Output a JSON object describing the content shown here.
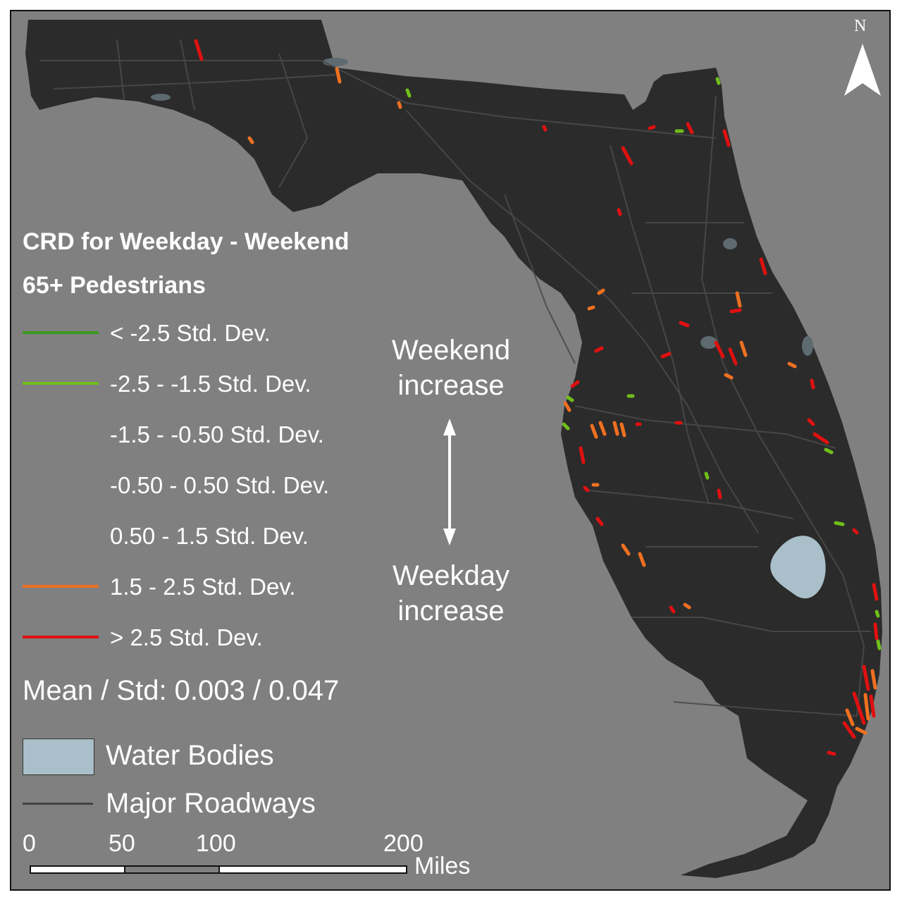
{
  "legend": {
    "title_line1": "CRD for Weekday - Weekend",
    "title_line2": "65+ Pedestrians",
    "classes": [
      {
        "label": " < -2.5 Std. Dev.",
        "color": "#3a9a1e"
      },
      {
        "label": "-2.5 - -1.5 Std. Dev.",
        "color": "#6fbf1a"
      },
      {
        "label": "-1.5 - -0.50 Std. Dev.",
        "color": ""
      },
      {
        "label": "-0.50 - 0.50 Std. Dev.",
        "color": ""
      },
      {
        "label": "0.50 - 1.5 Std. Dev.",
        "color": ""
      },
      {
        "label": "1.5 - 2.5 Std. Dev.",
        "color": "#f07020"
      },
      {
        "label": " > 2.5 Std. Dev.",
        "color": "#e01010"
      }
    ],
    "stats": "Mean / Std: 0.003 / 0.047",
    "water_label": "Water Bodies",
    "roads_label": "Major Roadways",
    "water_color": "#a9bfc9"
  },
  "annotation": {
    "weekend_line1": "Weekend",
    "weekend_line2": "increase",
    "weekday_line1": "Weekday",
    "weekday_line2": "increase"
  },
  "north_label": "N",
  "scale": {
    "ticks": [
      "0",
      "50",
      "100",
      "200"
    ],
    "unit": "Miles"
  },
  "colors": {
    "background": "#808080",
    "land": "#2b2b2b",
    "roads": "#4a4a4a"
  }
}
